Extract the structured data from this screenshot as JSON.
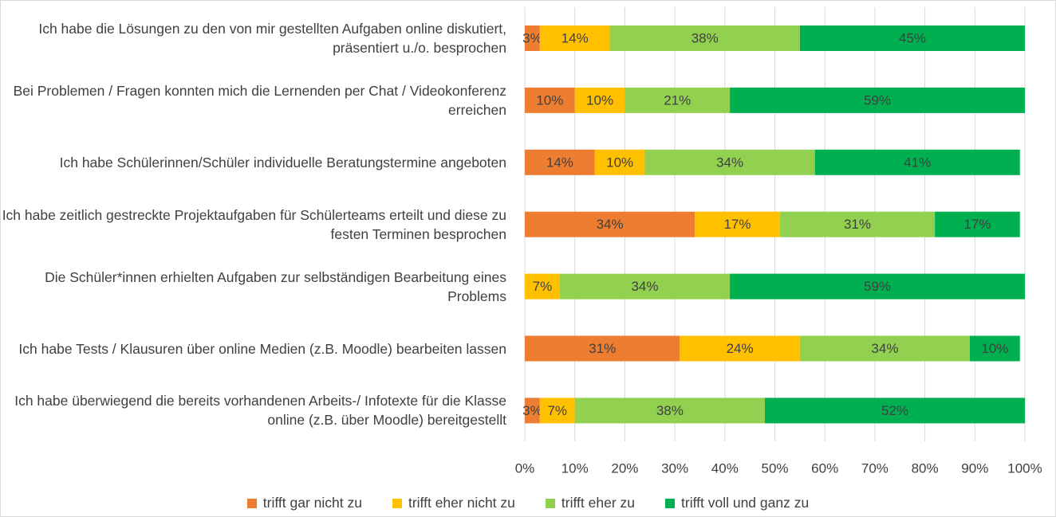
{
  "chart_data": {
    "type": "stacked_bar_horizontal",
    "categories": [
      "Ich habe die Lösungen zu den von mir gestellten Aufgaben online diskutiert, präsentiert u./o. besprochen",
      "Bei Problemen / Fragen konnten mich die Lernenden per Chat / Videokonferenz erreichen",
      "Ich habe Schülerinnen/Schüler individuelle Beratungstermine angeboten",
      "Ich habe zeitlich gestreckte Projektaufgaben für Schülerteams erteilt und diese zu festen Terminen besprochen",
      "Die Schüler*innen erhielten Aufgaben zur selbständigen Bearbeitung eines Problems",
      "Ich habe Tests / Klausuren über online Medien (z.B. Moodle) bearbeiten lassen",
      "Ich habe überwiegend die bereits vorhandenen Arbeits-/ Infotexte für die Klasse online (z.B. über Moodle) bereitgestellt"
    ],
    "series": [
      {
        "name": "trifft gar nicht zu",
        "color": "#ED7D31",
        "values": [
          3,
          10,
          14,
          34,
          null,
          31,
          3
        ],
        "value_labels": [
          "3%",
          "10%",
          "14%",
          "34%",
          null,
          "31%",
          "3%"
        ]
      },
      {
        "name": "trifft eher nicht zu",
        "color": "#FFC000",
        "values": [
          14,
          10,
          10,
          17,
          7,
          24,
          7
        ],
        "value_labels": [
          "14%",
          "10%",
          "10%",
          "17%",
          "7%",
          "24%",
          "7%"
        ]
      },
      {
        "name": "trifft eher zu",
        "color": "#92D050",
        "values": [
          38,
          21,
          34,
          31,
          34,
          34,
          38
        ],
        "value_labels": [
          "38%",
          "21%",
          "34%",
          "31%",
          "34%",
          "34%",
          "38%"
        ]
      },
      {
        "name": "trifft voll und ganz zu",
        "color": "#00B050",
        "values": [
          45,
          59,
          41,
          17,
          59,
          10,
          52
        ],
        "value_labels": [
          "45%",
          "59%",
          "41%",
          "17%",
          "59%",
          "10%",
          "52%"
        ]
      }
    ],
    "xlim": [
      0,
      100
    ],
    "xticks": [
      {
        "value": 0,
        "label": "0%"
      },
      {
        "value": 10,
        "label": "10%"
      },
      {
        "value": 20,
        "label": "20%"
      },
      {
        "value": 30,
        "label": "30%"
      },
      {
        "value": 40,
        "label": "40%"
      },
      {
        "value": 50,
        "label": "50%"
      },
      {
        "value": 60,
        "label": "60%"
      },
      {
        "value": 70,
        "label": "70%"
      },
      {
        "value": 80,
        "label": "80%"
      },
      {
        "value": 90,
        "label": "90%"
      },
      {
        "value": 100,
        "label": "100%"
      }
    ],
    "grid": true,
    "legend": "bottom"
  }
}
